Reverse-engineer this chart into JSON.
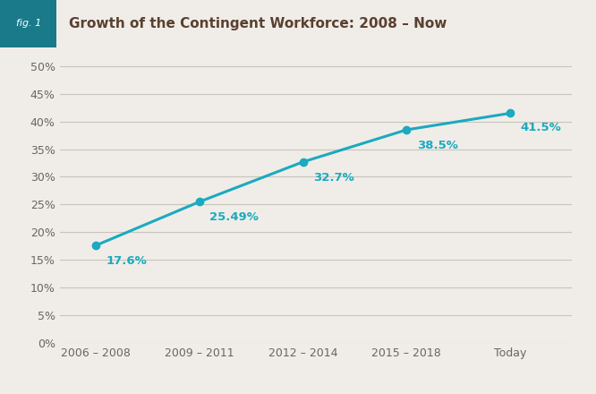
{
  "title": "Growth of the Contingent Workforce: 2008 – Now",
  "fig_label": "fig. 1",
  "categories": [
    "2006 – 2008",
    "2009 – 2011",
    "2012 – 2014",
    "2015 – 2018",
    "Today"
  ],
  "values": [
    17.6,
    25.49,
    32.7,
    38.5,
    41.5
  ],
  "labels": [
    "17.6%",
    "25.49%",
    "32.7%",
    "38.5%",
    "41.5%"
  ],
  "line_color": "#1baabf",
  "marker_color": "#1baabf",
  "marker_size": 6,
  "line_width": 2.2,
  "background_color": "#f0ede8",
  "plot_background": "#f0ede8",
  "header_bg": "#1baabf",
  "header_fig_bg": "#1a7a8a",
  "title_color": "#5a4030",
  "grid_color": "#c8c4bc",
  "tick_label_color": "#666666",
  "data_label_color": "#1baabf",
  "ylim": [
    0,
    52
  ],
  "yticks": [
    0,
    5,
    10,
    15,
    20,
    25,
    30,
    35,
    40,
    45,
    50
  ],
  "ytick_labels": [
    "0%",
    "5%",
    "10%",
    "15%",
    "20%",
    "25%",
    "30%",
    "35%",
    "40%",
    "45%",
    "50%"
  ],
  "title_fontsize": 11,
  "axis_fontsize": 9,
  "label_fontsize": 9.5,
  "figlabel_fontsize": 8
}
